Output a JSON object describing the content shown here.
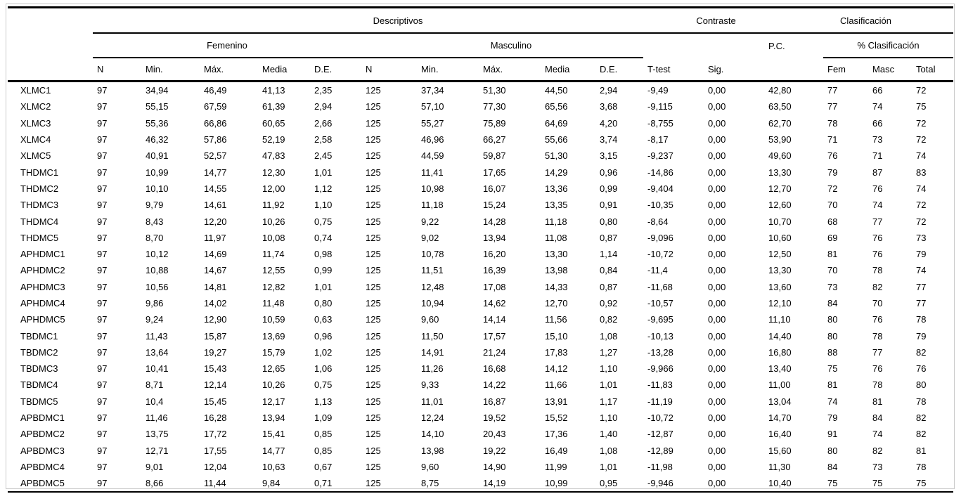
{
  "header": {
    "groups": {
      "descriptivos": "Descriptivos",
      "contraste": "Contraste",
      "clasificacion": "Clasificación",
      "femenino": "Femenino",
      "masculino": "Masculino",
      "pct_clasificacion": "% Clasificación"
    },
    "columns": {
      "n": "N",
      "min": "Min.",
      "max": "Máx.",
      "media": "Media",
      "de": "D.E.",
      "ttest": "T-test",
      "sig": "Sig.",
      "pc": "P.C.",
      "fem": "Fem",
      "masc": "Masc",
      "total": "Total"
    }
  },
  "table": {
    "rows": [
      {
        "label": "XLMC1",
        "cells": [
          "97",
          "34,94",
          "46,49",
          "41,13",
          "2,35",
          "125",
          "37,34",
          "51,30",
          "44,50",
          "2,94",
          "-9,49",
          "0,00",
          "42,80",
          "77",
          "66",
          "72"
        ]
      },
      {
        "label": "XLMC2",
        "cells": [
          "97",
          "55,15",
          "67,59",
          "61,39",
          "2,94",
          "125",
          "57,10",
          "77,30",
          "65,56",
          "3,68",
          "-9,115",
          "0,00",
          "63,50",
          "77",
          "74",
          "75"
        ]
      },
      {
        "label": "XLMC3",
        "cells": [
          "97",
          "55,36",
          "66,86",
          "60,65",
          "2,66",
          "125",
          "55,27",
          "75,89",
          "64,69",
          "4,20",
          "-8,755",
          "0,00",
          "62,70",
          "78",
          "66",
          "72"
        ]
      },
      {
        "label": "XLMC4",
        "cells": [
          "97",
          "46,32",
          "57,86",
          "52,19",
          "2,58",
          "125",
          "46,96",
          "66,27",
          "55,66",
          "3,74",
          "-8,17",
          "0,00",
          "53,90",
          "71",
          "73",
          "72"
        ]
      },
      {
        "label": "XLMC5",
        "cells": [
          "97",
          "40,91",
          "52,57",
          "47,83",
          "2,45",
          "125",
          "44,59",
          "59,87",
          "51,30",
          "3,15",
          "-9,237",
          "0,00",
          "49,60",
          "76",
          "71",
          "74"
        ]
      },
      {
        "label": "THDMC1",
        "cells": [
          "97",
          "10,99",
          "14,77",
          "12,30",
          "1,01",
          "125",
          "11,41",
          "17,65",
          "14,29",
          "0,96",
          "-14,86",
          "0,00",
          "13,30",
          "79",
          "87",
          "83"
        ]
      },
      {
        "label": "THDMC2",
        "cells": [
          "97",
          "10,10",
          "14,55",
          "12,00",
          "1,12",
          "125",
          "10,98",
          "16,07",
          "13,36",
          "0,99",
          "-9,404",
          "0,00",
          "12,70",
          "72",
          "76",
          "74"
        ]
      },
      {
        "label": "THDMC3",
        "cells": [
          "97",
          "9,79",
          "14,61",
          "11,92",
          "1,10",
          "125",
          "11,18",
          "15,24",
          "13,35",
          "0,91",
          "-10,35",
          "0,00",
          "12,60",
          "70",
          "74",
          "72"
        ]
      },
      {
        "label": "THDMC4",
        "cells": [
          "97",
          "8,43",
          "12,20",
          "10,26",
          "0,75",
          "125",
          "9,22",
          "14,28",
          "11,18",
          "0,80",
          "-8,64",
          "0,00",
          "10,70",
          "68",
          "77",
          "72"
        ]
      },
      {
        "label": "THDMC5",
        "cells": [
          "97",
          "8,70",
          "11,97",
          "10,08",
          "0,74",
          "125",
          "9,02",
          "13,94",
          "11,08",
          "0,87",
          "-9,096",
          "0,00",
          "10,60",
          "69",
          "76",
          "73"
        ]
      },
      {
        "label": "APHDMC1",
        "cells": [
          "97",
          "10,12",
          "14,69",
          "11,74",
          "0,98",
          "125",
          "10,78",
          "16,20",
          "13,30",
          "1,14",
          "-10,72",
          "0,00",
          "12,50",
          "81",
          "76",
          "79"
        ]
      },
      {
        "label": "APHDMC2",
        "cells": [
          "97",
          "10,88",
          "14,67",
          "12,55",
          "0,99",
          "125",
          "11,51",
          "16,39",
          "13,98",
          "0,84",
          "-11,4",
          "0,00",
          "13,30",
          "70",
          "78",
          "74"
        ]
      },
      {
        "label": "APHDMC3",
        "cells": [
          "97",
          "10,56",
          "14,81",
          "12,82",
          "1,01",
          "125",
          "12,48",
          "17,08",
          "14,33",
          "0,87",
          "-11,68",
          "0,00",
          "13,60",
          "73",
          "82",
          "77"
        ]
      },
      {
        "label": "APHDMC4",
        "cells": [
          "97",
          "9,86",
          "14,02",
          "11,48",
          "0,80",
          "125",
          "10,94",
          "14,62",
          "12,70",
          "0,92",
          "-10,57",
          "0,00",
          "12,10",
          "84",
          "70",
          "77"
        ]
      },
      {
        "label": "APHDMC5",
        "cells": [
          "97",
          "9,24",
          "12,90",
          "10,59",
          "0,63",
          "125",
          "9,60",
          "14,14",
          "11,56",
          "0,82",
          "-9,695",
          "0,00",
          "11,10",
          "80",
          "76",
          "78"
        ]
      },
      {
        "label": "TBDMC1",
        "cells": [
          "97",
          "11,43",
          "15,87",
          "13,69",
          "0,96",
          "125",
          "11,50",
          "17,57",
          "15,10",
          "1,08",
          "-10,13",
          "0,00",
          "14,40",
          "80",
          "78",
          "79"
        ]
      },
      {
        "label": "TBDMC2",
        "cells": [
          "97",
          "13,64",
          "19,27",
          "15,79",
          "1,02",
          "125",
          "14,91",
          "21,24",
          "17,83",
          "1,27",
          "-13,28",
          "0,00",
          "16,80",
          "88",
          "77",
          "82"
        ]
      },
      {
        "label": "TBDMC3",
        "cells": [
          "97",
          "10,41",
          "15,43",
          "12,65",
          "1,06",
          "125",
          "11,26",
          "16,68",
          "14,12",
          "1,10",
          "-9,966",
          "0,00",
          "13,40",
          "75",
          "76",
          "76"
        ]
      },
      {
        "label": "TBDMC4",
        "cells": [
          "97",
          "8,71",
          "12,14",
          "10,26",
          "0,75",
          "125",
          "9,33",
          "14,22",
          "11,66",
          "1,01",
          "-11,83",
          "0,00",
          "11,00",
          "81",
          "78",
          "80"
        ]
      },
      {
        "label": "TBDMC5",
        "cells": [
          "97",
          "10,4",
          "15,45",
          "12,17",
          "1,13",
          "125",
          "11,01",
          "16,87",
          "13,91",
          "1,17",
          "-11,19",
          "0,00",
          "13,04",
          "74",
          "81",
          "78"
        ]
      },
      {
        "label": "APBDMC1",
        "cells": [
          "97",
          "11,46",
          "16,28",
          "13,94",
          "1,09",
          "125",
          "12,24",
          "19,52",
          "15,52",
          "1,10",
          "-10,72",
          "0,00",
          "14,70",
          "79",
          "84",
          "82"
        ]
      },
      {
        "label": "APBDMC2",
        "cells": [
          "97",
          "13,75",
          "17,72",
          "15,41",
          "0,85",
          "125",
          "14,10",
          "20,43",
          "17,36",
          "1,40",
          "-12,87",
          "0,00",
          "16,40",
          "91",
          "74",
          "82"
        ]
      },
      {
        "label": "APBDMC3",
        "cells": [
          "97",
          "12,71",
          "17,55",
          "14,77",
          "0,85",
          "125",
          "13,98",
          "19,22",
          "16,49",
          "1,08",
          "-12,89",
          "0,00",
          "15,60",
          "80",
          "82",
          "81"
        ]
      },
      {
        "label": "APBDMC4",
        "cells": [
          "97",
          "9,01",
          "12,04",
          "10,63",
          "0,67",
          "125",
          "9,60",
          "14,90",
          "11,99",
          "1,01",
          "-11,98",
          "0,00",
          "11,30",
          "84",
          "73",
          "78"
        ]
      },
      {
        "label": "APBDMC5",
        "cells": [
          "97",
          "8,66",
          "11,44",
          "9,84",
          "0,71",
          "125",
          "8,75",
          "14,19",
          "10,99",
          "0,95",
          "-9,946",
          "0,00",
          "10,40",
          "75",
          "75",
          "75"
        ]
      }
    ]
  },
  "colors": {
    "rule": "#000000",
    "frame": "#c9c9c9",
    "text": "#000000",
    "background": "#ffffff"
  }
}
